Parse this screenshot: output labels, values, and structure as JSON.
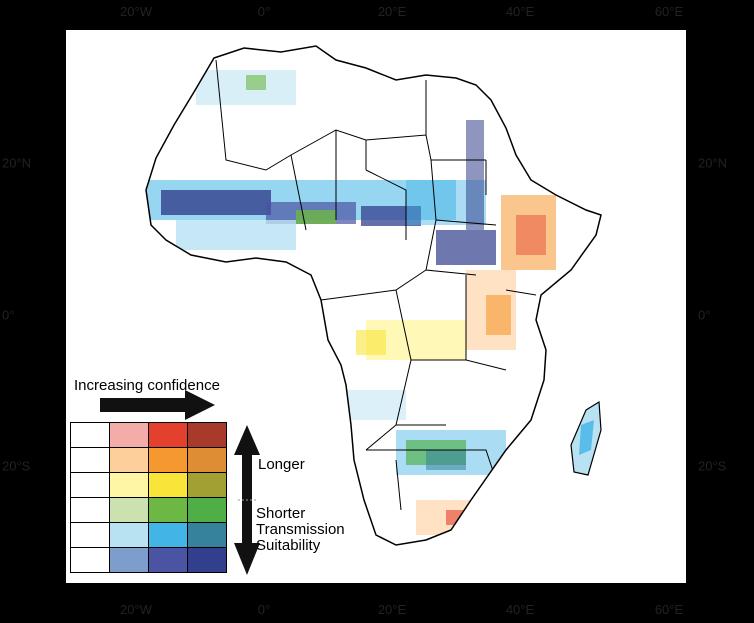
{
  "map": {
    "lon_ticks": [
      {
        "label": "20°W",
        "x": 136
      },
      {
        "label": "0°",
        "x": 264
      },
      {
        "label": "20°E",
        "x": 392
      },
      {
        "label": "40°E",
        "x": 520
      },
      {
        "label": "60°E",
        "x": 669
      }
    ],
    "lat_ticks": [
      {
        "label": "20°N",
        "y": 163
      },
      {
        "label": "0°",
        "y": 315
      },
      {
        "label": "20°S",
        "y": 466
      }
    ]
  },
  "legend": {
    "increasing_confidence": "Increasing confidence",
    "longer": "Longer",
    "shorter": "Shorter",
    "transmission": "Transmission",
    "suitability": "Suitability",
    "colors": [
      [
        "#ffffff",
        "#f3aca8",
        "#e4402e",
        "#a83a2c"
      ],
      [
        "#ffffff",
        "#fdcf9b",
        "#f5982f",
        "#df8d35"
      ],
      [
        "#ffffff",
        "#fff6a5",
        "#f9e53a",
        "#a29f33"
      ],
      [
        "#ffffff",
        "#cbe2b0",
        "#6db844",
        "#4faf46"
      ],
      [
        "#ffffff",
        "#b8e1f2",
        "#42b4e6",
        "#36819c"
      ],
      [
        "#ffffff",
        "#7d9dcc",
        "#4a54a3",
        "#323f8c"
      ]
    ]
  }
}
